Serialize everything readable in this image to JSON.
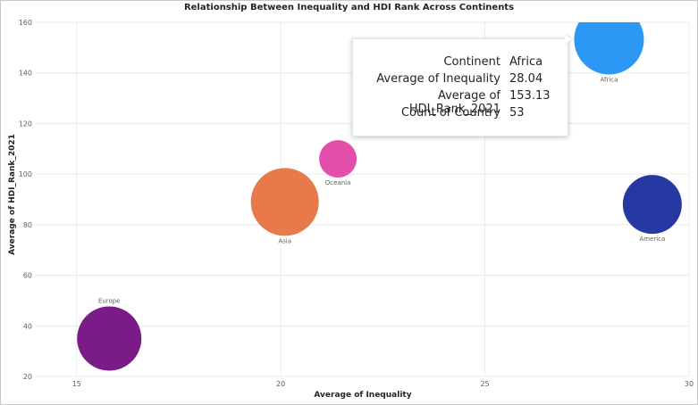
{
  "chart_data": {
    "type": "scatter",
    "title": "Relationship Between Inequality and HDI Rank Across Continents",
    "xlabel": "Average of Inequality",
    "ylabel": "Average of HDI_Rank_2021",
    "xlim": [
      14,
      30
    ],
    "ylim": [
      20,
      160
    ],
    "x_ticks": [
      15,
      20,
      25,
      30
    ],
    "y_ticks": [
      20,
      40,
      60,
      80,
      100,
      120,
      140,
      160
    ],
    "grid": true,
    "series": [
      {
        "label": "Africa",
        "x": 28.04,
        "y": 153.13,
        "color": "#2c97f4"
      },
      {
        "label": "America",
        "x": 29.1,
        "y": 88,
        "color": "#2838a3"
      },
      {
        "label": "Asia",
        "x": 20.1,
        "y": 89,
        "color": "#e8794a"
      },
      {
        "label": "Oceania",
        "x": 21.4,
        "y": 106,
        "color": "#e24eaa"
      },
      {
        "label": "Europe",
        "x": 15.8,
        "y": 35,
        "color": "#7a1b87"
      }
    ]
  },
  "tooltip": {
    "rows": [
      {
        "key": "Continent",
        "value": "Africa"
      },
      {
        "key": "Average of Inequality",
        "value": "28.04"
      },
      {
        "key": "Average of HDI_Rank_2021",
        "value": "153.13"
      },
      {
        "key": "Count of Country",
        "value": "53"
      }
    ]
  }
}
